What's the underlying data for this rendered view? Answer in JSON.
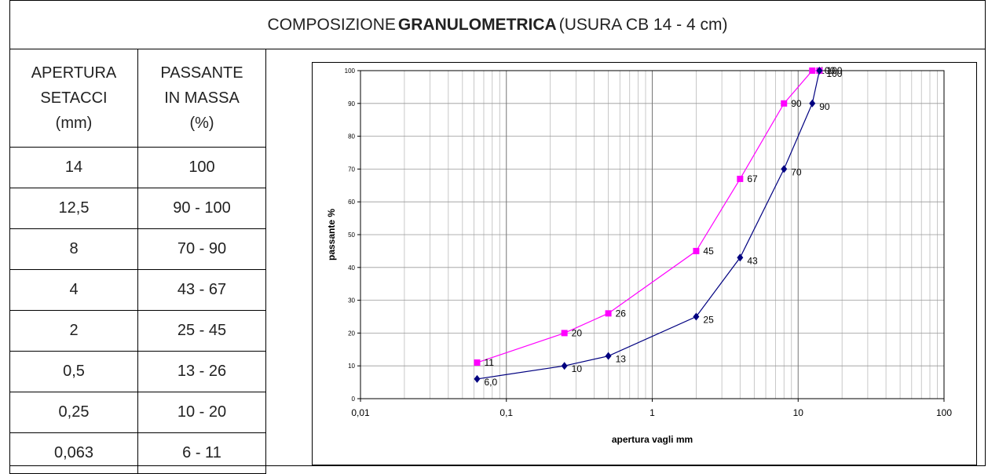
{
  "title": [
    "COMPOSIZIONE",
    "GRANULOMETRICA",
    "(USURA CB 14 - 4 cm)"
  ],
  "table": {
    "header": [
      "APERTURA SETACCI (mm)",
      "PASSANTE IN MASSA (%)"
    ],
    "rows": [
      [
        "14",
        "100"
      ],
      [
        "12,5",
        "90 - 100"
      ],
      [
        "8",
        "70 - 90"
      ],
      [
        "4",
        "43 - 67"
      ],
      [
        "2",
        "25 - 45"
      ],
      [
        "0,5",
        "13 - 26"
      ],
      [
        "0,25",
        "10 - 20"
      ],
      [
        "0,063",
        "6 - 11"
      ]
    ]
  },
  "chart_data": {
    "type": "line",
    "x_label": "apertura vagli mm",
    "y_label": "passante %",
    "x": [
      0.063,
      0.25,
      0.5,
      2,
      4,
      8,
      12.5,
      14
    ],
    "series": [
      {
        "color": "#ff00ff",
        "marker": "square",
        "values": [
          11,
          20,
          26,
          45,
          67,
          90,
          100,
          100
        ]
      },
      {
        "color": "#000080",
        "marker": "diamond",
        "values": [
          6,
          10,
          13,
          25,
          43,
          70,
          90,
          100
        ],
        "value_labels": [
          "6,0",
          "10",
          "13",
          "25",
          "43",
          "70",
          "90",
          "100"
        ]
      }
    ],
    "xscale": "log",
    "xlim": [
      0.01,
      100
    ],
    "ylim": [
      0,
      100
    ],
    "xticks": [
      {
        "value": 0.01,
        "label": "0,01"
      },
      {
        "value": 0.1,
        "label": "0,1"
      },
      1,
      10,
      100
    ],
    "yticks": [
      0,
      10,
      20,
      30,
      40,
      50,
      60,
      70,
      80,
      90,
      100
    ],
    "grid": true,
    "minor_grid": true
  }
}
